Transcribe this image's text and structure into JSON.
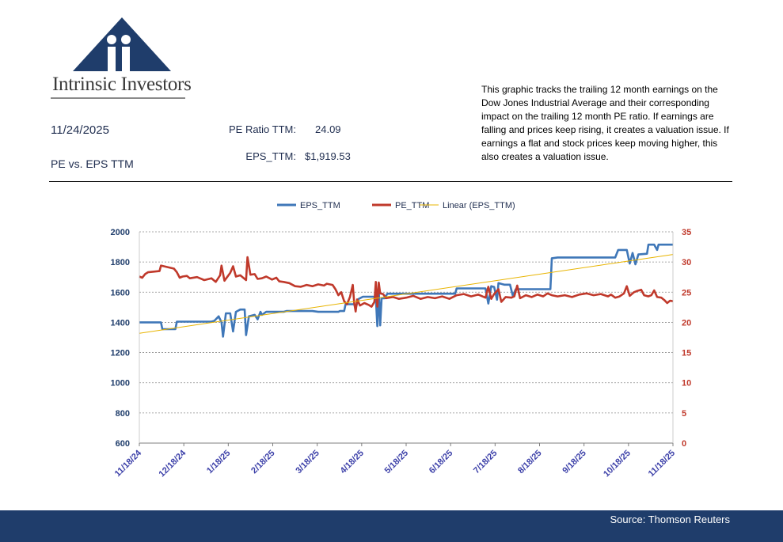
{
  "brand": {
    "name": "Intrinsic Investors",
    "color": "#1f3d6b"
  },
  "header": {
    "date": "11/24/2025",
    "subtitle": "PE vs. EPS TTM",
    "pe_label": "PE Ratio TTM:",
    "pe_value": "24.09",
    "eps_label": "EPS_TTM:",
    "eps_value": "$1,919.53"
  },
  "description": "This graphic tracks the trailing 12 month earnings on the Dow Jones Industrial Average and their corresponding impact on the trailing 12 month PE ratio.  If earnings are falling and prices keep rising, it creates a valuation issue.  If earnings a flat and stock prices keep moving higher, this also creates a valuation issue.",
  "footer": {
    "source": "Source: Thomson Reuters"
  },
  "chart_data": {
    "type": "line",
    "title": "",
    "legend_position": "top",
    "grid": true,
    "x_tick_labels": [
      "11/18/24",
      "12/18/24",
      "1/18/25",
      "2/18/25",
      "3/18/25",
      "4/18/25",
      "5/18/25",
      "6/18/25",
      "7/18/25",
      "8/18/25",
      "9/18/25",
      "10/18/25",
      "11/18/25"
    ],
    "x_range": [
      0,
      370
    ],
    "y_left": {
      "ylim": [
        600,
        2000
      ],
      "ticks": [
        600,
        800,
        1000,
        1200,
        1400,
        1600,
        1800,
        2000
      ],
      "color": "#1f3d6b"
    },
    "y_right": {
      "ylim": [
        0,
        35
      ],
      "ticks": [
        0,
        5,
        10,
        15,
        20,
        25,
        30,
        35
      ],
      "color": "#c0392b"
    },
    "series": [
      {
        "name": "EPS_TTM",
        "axis": "left",
        "color": "#3f77b8",
        "points": [
          [
            0,
            1400
          ],
          [
            15,
            1400
          ],
          [
            16,
            1355
          ],
          [
            25,
            1355
          ],
          [
            26,
            1405
          ],
          [
            50,
            1405
          ],
          [
            52,
            1410
          ],
          [
            55,
            1440
          ],
          [
            57,
            1400
          ],
          [
            58,
            1305
          ],
          [
            60,
            1460
          ],
          [
            63,
            1460
          ],
          [
            65,
            1340
          ],
          [
            67,
            1470
          ],
          [
            70,
            1485
          ],
          [
            73,
            1485
          ],
          [
            74,
            1315
          ],
          [
            76,
            1440
          ],
          [
            80,
            1450
          ],
          [
            82,
            1420
          ],
          [
            84,
            1470
          ],
          [
            85,
            1450
          ],
          [
            88,
            1470
          ],
          [
            100,
            1470
          ],
          [
            102,
            1475
          ],
          [
            120,
            1475
          ],
          [
            124,
            1470
          ],
          [
            138,
            1470
          ],
          [
            139,
            1475
          ],
          [
            142,
            1475
          ],
          [
            143,
            1520
          ],
          [
            149,
            1520
          ],
          [
            150,
            1495
          ],
          [
            152,
            1555
          ],
          [
            155,
            1570
          ],
          [
            162,
            1570
          ],
          [
            164,
            1565
          ],
          [
            165,
            1375
          ],
          [
            166,
            1620
          ],
          [
            167,
            1380
          ],
          [
            168,
            1560
          ],
          [
            170,
            1560
          ],
          [
            172,
            1590
          ],
          [
            219,
            1590
          ],
          [
            220,
            1625
          ],
          [
            240,
            1625
          ],
          [
            242,
            1525
          ],
          [
            244,
            1640
          ],
          [
            246,
            1635
          ],
          [
            248,
            1550
          ],
          [
            249,
            1660
          ],
          [
            253,
            1650
          ],
          [
            257,
            1650
          ],
          [
            259,
            1575
          ],
          [
            261,
            1620
          ],
          [
            285,
            1620
          ],
          [
            286,
            1825
          ],
          [
            290,
            1830
          ],
          [
            330,
            1830
          ],
          [
            332,
            1880
          ],
          [
            338,
            1880
          ],
          [
            340,
            1790
          ],
          [
            342,
            1860
          ],
          [
            344,
            1785
          ],
          [
            346,
            1850
          ],
          [
            352,
            1855
          ],
          [
            353,
            1915
          ],
          [
            357,
            1915
          ],
          [
            359,
            1880
          ],
          [
            360,
            1915
          ],
          [
            370,
            1915
          ]
        ]
      },
      {
        "name": "PE_TTM",
        "axis": "right",
        "color": "#c0392b",
        "points": [
          [
            0,
            27.6
          ],
          [
            2,
            27.4
          ],
          [
            4,
            28.0
          ],
          [
            6,
            28.3
          ],
          [
            14,
            28.5
          ],
          [
            15,
            29.4
          ],
          [
            17,
            29.3
          ],
          [
            24,
            28.9
          ],
          [
            26,
            28.3
          ],
          [
            28,
            27.4
          ],
          [
            30,
            27.6
          ],
          [
            33,
            27.7
          ],
          [
            35,
            27.3
          ],
          [
            40,
            27.5
          ],
          [
            45,
            27.0
          ],
          [
            50,
            27.3
          ],
          [
            53,
            26.7
          ],
          [
            56,
            27.8
          ],
          [
            57,
            29.4
          ],
          [
            59,
            26.9
          ],
          [
            63,
            28.2
          ],
          [
            65,
            29.3
          ],
          [
            67,
            27.6
          ],
          [
            70,
            27.8
          ],
          [
            72,
            27.4
          ],
          [
            74,
            27.0
          ],
          [
            75,
            30.8
          ],
          [
            77,
            27.9
          ],
          [
            80,
            28.0
          ],
          [
            82,
            27.2
          ],
          [
            85,
            27.3
          ],
          [
            88,
            27.6
          ],
          [
            92,
            27.1
          ],
          [
            95,
            27.4
          ],
          [
            97,
            26.8
          ],
          [
            100,
            26.7
          ],
          [
            104,
            26.5
          ],
          [
            108,
            26.0
          ],
          [
            112,
            25.9
          ],
          [
            116,
            26.2
          ],
          [
            120,
            26.0
          ],
          [
            124,
            26.3
          ],
          [
            128,
            26.1
          ],
          [
            130,
            26.4
          ],
          [
            134,
            26.2
          ],
          [
            136,
            25.5
          ],
          [
            138,
            24.5
          ],
          [
            140,
            25.0
          ],
          [
            142,
            23.5
          ],
          [
            144,
            23.0
          ],
          [
            146,
            24.2
          ],
          [
            148,
            26.2
          ],
          [
            149,
            23.2
          ],
          [
            150,
            21.8
          ],
          [
            151,
            23.8
          ],
          [
            153,
            22.8
          ],
          [
            156,
            23.2
          ],
          [
            159,
            22.9
          ],
          [
            161,
            22.6
          ],
          [
            163,
            23.4
          ],
          [
            164,
            26.7
          ],
          [
            165,
            22.6
          ],
          [
            166,
            26.6
          ],
          [
            167,
            24.8
          ],
          [
            169,
            24.7
          ],
          [
            171,
            24.0
          ],
          [
            176,
            24.2
          ],
          [
            180,
            23.9
          ],
          [
            185,
            24.1
          ],
          [
            190,
            24.4
          ],
          [
            195,
            23.9
          ],
          [
            200,
            24.2
          ],
          [
            205,
            24.0
          ],
          [
            210,
            24.3
          ],
          [
            215,
            23.9
          ],
          [
            220,
            24.5
          ],
          [
            225,
            24.7
          ],
          [
            230,
            24.3
          ],
          [
            235,
            24.6
          ],
          [
            240,
            24.1
          ],
          [
            242,
            25.9
          ],
          [
            244,
            23.9
          ],
          [
            246,
            24.7
          ],
          [
            249,
            25.5
          ],
          [
            251,
            23.4
          ],
          [
            254,
            24.2
          ],
          [
            258,
            24.1
          ],
          [
            260,
            24.3
          ],
          [
            262,
            26.1
          ],
          [
            264,
            24.0
          ],
          [
            268,
            24.5
          ],
          [
            272,
            24.2
          ],
          [
            276,
            24.6
          ],
          [
            280,
            24.3
          ],
          [
            283,
            24.8
          ],
          [
            286,
            24.5
          ],
          [
            290,
            24.3
          ],
          [
            295,
            24.5
          ],
          [
            300,
            24.2
          ],
          [
            305,
            24.6
          ],
          [
            310,
            24.8
          ],
          [
            315,
            24.5
          ],
          [
            320,
            24.7
          ],
          [
            325,
            24.3
          ],
          [
            327,
            24.6
          ],
          [
            330,
            24.1
          ],
          [
            333,
            24.3
          ],
          [
            336,
            24.8
          ],
          [
            338,
            26.0
          ],
          [
            340,
            24.4
          ],
          [
            343,
            25.0
          ],
          [
            345,
            25.2
          ],
          [
            348,
            25.4
          ],
          [
            350,
            24.5
          ],
          [
            353,
            24.3
          ],
          [
            355,
            24.5
          ],
          [
            357,
            25.3
          ],
          [
            359,
            24.2
          ],
          [
            362,
            24.1
          ],
          [
            364,
            23.7
          ],
          [
            366,
            23.2
          ],
          [
            368,
            23.6
          ],
          [
            370,
            23.5
          ]
        ]
      },
      {
        "name": "Linear (EPS_TTM)",
        "axis": "left",
        "color": "#e8b400",
        "kind": "trendline",
        "points": [
          [
            0,
            1328
          ],
          [
            370,
            1850
          ]
        ]
      }
    ]
  }
}
